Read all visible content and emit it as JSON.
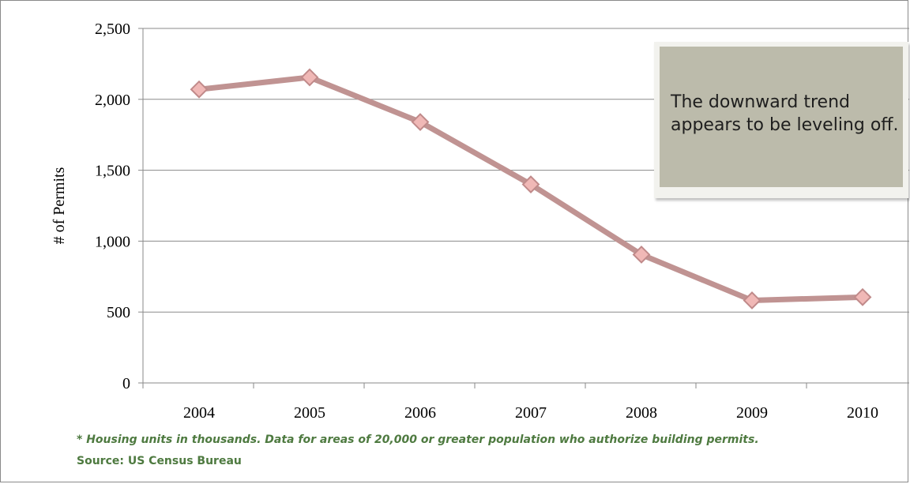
{
  "chart_data": {
    "type": "line",
    "categories": [
      "2004",
      "2005",
      "2006",
      "2007",
      "2008",
      "2009",
      "2010"
    ],
    "series": [
      {
        "values": [
          2070,
          2155,
          1840,
          1400,
          905,
          582,
          605
        ]
      }
    ],
    "ylabel": "# of Permits",
    "xlabel": "",
    "ylim": [
      0,
      2500
    ],
    "yticks": [
      0,
      500,
      1000,
      1500,
      2000,
      2500
    ],
    "ytick_labels": [
      "0",
      "500",
      "1,000",
      "1,500",
      "2,000",
      "2,500"
    ],
    "grid": "horizontal",
    "annotation": "The downward trend appears to be leveling off.",
    "colors": {
      "line": "#c09392",
      "marker_fill": "#f0b8b6",
      "marker_stroke": "#c08a8a",
      "grid": "#8a8a8a"
    }
  },
  "footnote": "* Housing units in thousands. Data for areas  of 20,000 or greater population who authorize building permits.",
  "source": "Source: US Census Bureau"
}
